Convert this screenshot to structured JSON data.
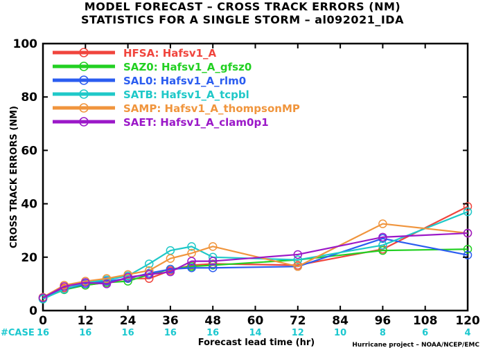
{
  "title_line1": "MODEL FORECAST – CROSS TRACK ERRORS (NM)",
  "title_line2": "STATISTICS FOR A SINGLE STORM – al092021_IDA",
  "case_label": "#CASE",
  "credit": "Hurricane project – NOAA/NCEP/EMC",
  "chart_data": {
    "type": "line",
    "xlabel": "Forecast lead time (hr)",
    "ylabel": "CROSS TRACK ERRORS (NM)",
    "xlim": [
      0,
      120
    ],
    "ylim": [
      0,
      100
    ],
    "x_ticks": [
      0,
      12,
      24,
      36,
      48,
      60,
      72,
      84,
      96,
      108,
      120
    ],
    "y_ticks": [
      0,
      20,
      40,
      60,
      80,
      100
    ],
    "case_counts": [
      16,
      16,
      16,
      16,
      16,
      14,
      12,
      10,
      8,
      6,
      4
    ],
    "legend_position": "top-left",
    "series": [
      {
        "name": "HFSA: Hafsv1_A",
        "color": "#f0453d",
        "x": [
          0,
          6,
          12,
          18,
          24,
          30,
          36,
          42,
          48,
          72,
          96,
          120
        ],
        "y": [
          4.8,
          8.5,
          9.5,
          10.5,
          12.0,
          12.0,
          15.0,
          17.0,
          17.5,
          17.0,
          23.0,
          39.0
        ]
      },
      {
        "name": "SAZ0: Hafsv1_A_gfsz0",
        "color": "#22d022",
        "x": [
          0,
          6,
          12,
          18,
          24,
          30,
          36,
          42,
          48,
          72,
          96,
          120
        ],
        "y": [
          4.5,
          7.8,
          9.5,
          10.5,
          11.0,
          13.5,
          15.5,
          16.5,
          17.0,
          19.0,
          22.5,
          23.0
        ]
      },
      {
        "name": "SAL0: Hafsv1_A_rlm0",
        "color": "#2b5df0",
        "x": [
          0,
          6,
          12,
          18,
          24,
          30,
          36,
          42,
          48,
          72,
          96,
          120
        ],
        "y": [
          4.8,
          8.0,
          10.0,
          11.0,
          12.0,
          14.0,
          15.5,
          16.0,
          16.0,
          16.5,
          27.0,
          20.8
        ]
      },
      {
        "name": "SATB: Hafsv1_A_tcpbl",
        "color": "#1fc8c8",
        "x": [
          0,
          6,
          12,
          18,
          24,
          30,
          36,
          42,
          48,
          72,
          96,
          120
        ],
        "y": [
          4.3,
          8.0,
          10.5,
          11.5,
          13.0,
          17.5,
          22.5,
          24.0,
          20.0,
          19.0,
          24.5,
          37.0
        ]
      },
      {
        "name": "SAMP: Hafsv1_A_thompsonMP",
        "color": "#f0953d",
        "x": [
          0,
          6,
          12,
          18,
          24,
          30,
          36,
          42,
          48,
          72,
          96,
          120
        ],
        "y": [
          5.0,
          9.5,
          11.0,
          12.0,
          13.5,
          15.0,
          19.5,
          21.5,
          24.0,
          16.5,
          32.5,
          29.0
        ]
      },
      {
        "name": "SAET: Hafsv1_A_clam0p1",
        "color": "#9b18c8",
        "x": [
          0,
          6,
          12,
          18,
          24,
          30,
          36,
          42,
          48,
          72,
          96,
          120
        ],
        "y": [
          4.8,
          9.0,
          10.5,
          10.0,
          12.5,
          13.5,
          14.5,
          18.5,
          18.5,
          21.0,
          27.5,
          29.0
        ]
      }
    ]
  }
}
